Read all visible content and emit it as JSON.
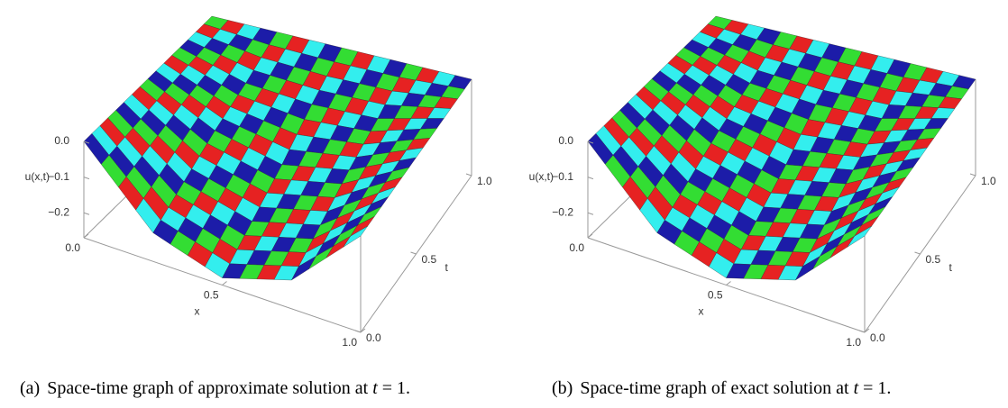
{
  "chart_data": [
    {
      "type": "surface",
      "zlabel": "u(x,t)",
      "xlabel": "x",
      "tlabel": "t",
      "x": [
        0,
        0.25,
        0.5,
        0.75,
        1
      ],
      "t": [
        0,
        0.25,
        0.5,
        0.75,
        1
      ],
      "z": [
        [
          0,
          -0.19,
          -0.25,
          -0.19,
          0
        ],
        [
          0,
          -0.14,
          -0.19,
          -0.14,
          0
        ],
        [
          0,
          -0.09,
          -0.13,
          -0.09,
          0
        ],
        [
          0,
          -0.05,
          -0.06,
          -0.05,
          0
        ],
        [
          0,
          0,
          0,
          0,
          0
        ]
      ],
      "xlim": [
        0,
        1
      ],
      "tlim": [
        0,
        1
      ],
      "zlim": [
        -0.27,
        0
      ],
      "xticks": [
        {
          "value": 0,
          "label": "0.0"
        },
        0.5,
        {
          "value": 1,
          "label": "1.0"
        }
      ],
      "tticks": [
        {
          "value": 0,
          "label": "0.0"
        },
        0.5,
        {
          "value": 1,
          "label": "1.0"
        }
      ],
      "zticks": [
        {
          "value": 0,
          "label": "0.0"
        },
        {
          "value": -0.1,
          "label": "−0.1"
        },
        {
          "value": -0.2,
          "label": "−0.2"
        }
      ],
      "colors": [
        "#1c1ca8",
        "#33dd33",
        "#e62222",
        "#33eeee"
      ],
      "caption": {
        "label": "(a)",
        "text": "Space-time graph of approximate solution at",
        "var": "t",
        "tail": "= 1."
      }
    },
    {
      "type": "surface",
      "zlabel": "u(x,t)",
      "xlabel": "x",
      "tlabel": "t",
      "x": [
        0,
        0.25,
        0.5,
        0.75,
        1
      ],
      "t": [
        0,
        0.25,
        0.5,
        0.75,
        1
      ],
      "z": [
        [
          0,
          -0.19,
          -0.25,
          -0.19,
          0
        ],
        [
          0,
          -0.14,
          -0.19,
          -0.14,
          0
        ],
        [
          0,
          -0.09,
          -0.13,
          -0.09,
          0
        ],
        [
          0,
          -0.05,
          -0.06,
          -0.05,
          0
        ],
        [
          0,
          0,
          0,
          0,
          0
        ]
      ],
      "xlim": [
        0,
        1
      ],
      "tlim": [
        0,
        1
      ],
      "zlim": [
        -0.27,
        0
      ],
      "xticks": [
        {
          "value": 0,
          "label": "0.0"
        },
        0.5,
        {
          "value": 1,
          "label": "1.0"
        }
      ],
      "tticks": [
        {
          "value": 0,
          "label": "0.0"
        },
        0.5,
        {
          "value": 1,
          "label": "1.0"
        }
      ],
      "zticks": [
        {
          "value": 0,
          "label": "0.0"
        },
        {
          "value": -0.1,
          "label": "−0.1"
        },
        {
          "value": -0.2,
          "label": "−0.2"
        }
      ],
      "colors": [
        "#1c1ca8",
        "#33dd33",
        "#e62222",
        "#33eeee"
      ],
      "caption": {
        "label": "(b)",
        "text": "Space-time graph of exact solution at",
        "var": "t",
        "tail": "= 1."
      }
    }
  ]
}
